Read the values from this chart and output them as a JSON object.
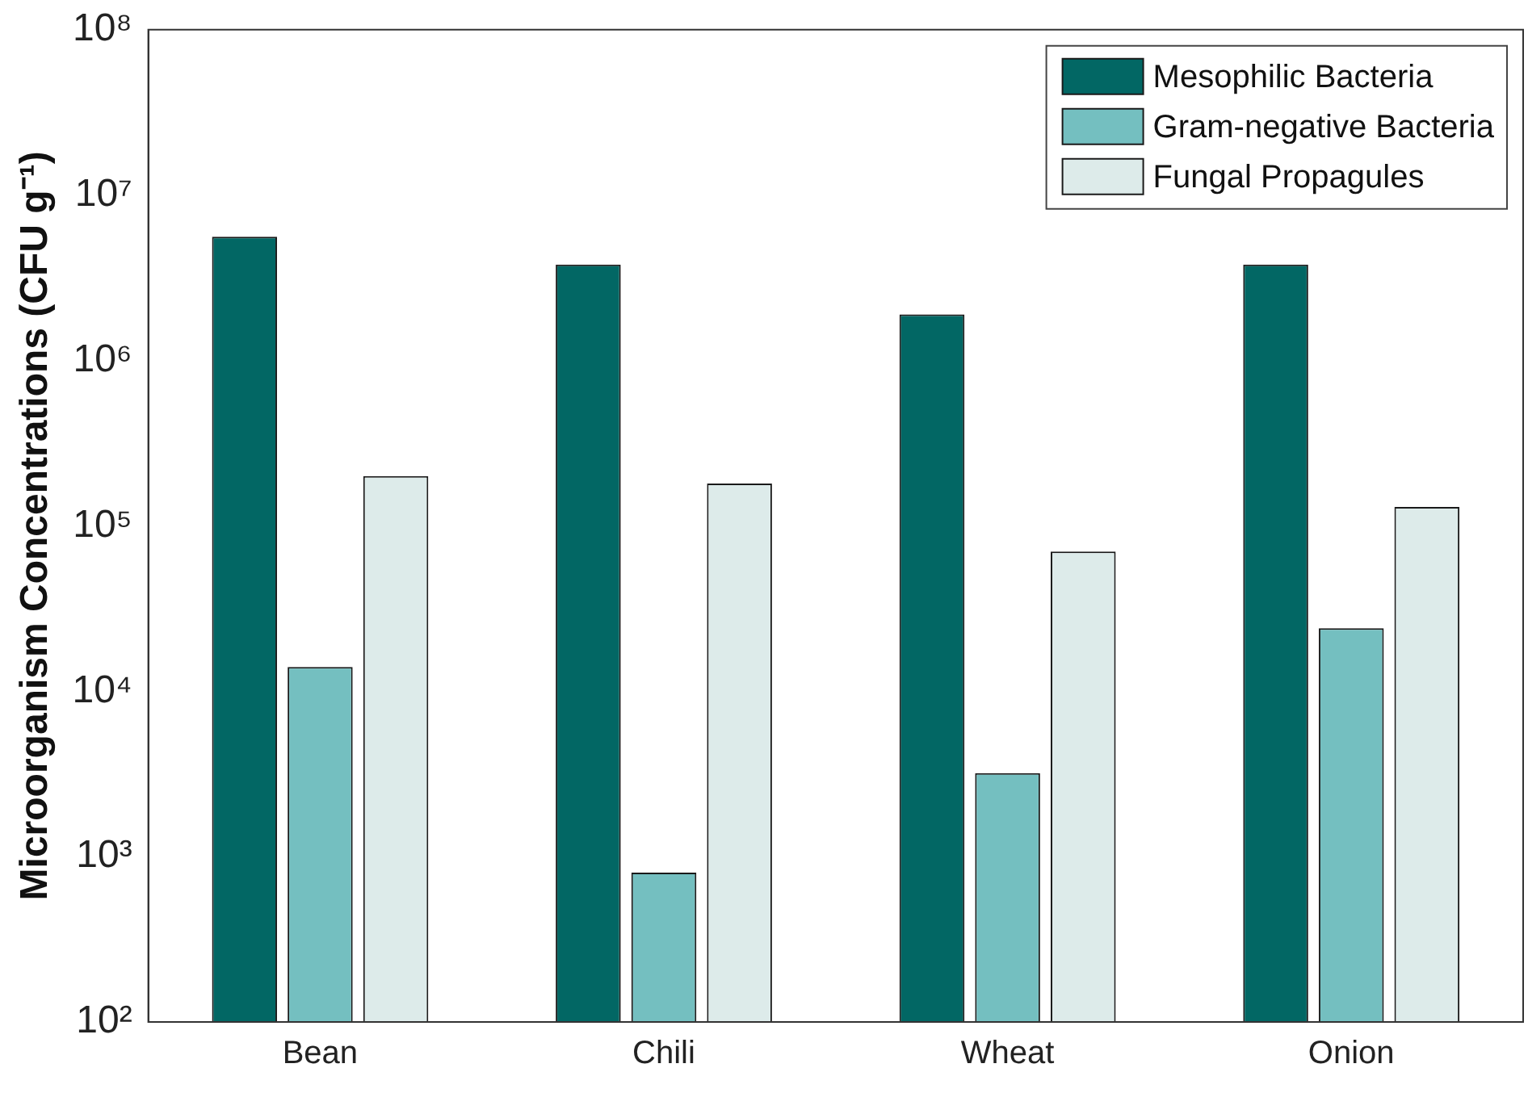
{
  "chart_data": {
    "type": "bar",
    "ylabel": "Microorganism Concentrations (CFU g⁻¹)",
    "categories": [
      "Bean",
      "Chili",
      "Wheat",
      "Onion"
    ],
    "series": [
      {
        "name": "Mesophilic Bacteria",
        "color": "#026764",
        "values": [
          5600000,
          3800000,
          1900000,
          3800000
        ]
      },
      {
        "name": "Gram-negative Bacteria",
        "color": "#74bfc0",
        "values": [
          14000,
          800,
          3200,
          24000
        ]
      },
      {
        "name": "Fungal Propagules",
        "color": "#ddebea",
        "values": [
          200000,
          180000,
          70000,
          130000
        ]
      }
    ],
    "log": "y",
    "ylim": [
      100,
      100000000
    ],
    "yticks": [
      {
        "value": 100,
        "label": "10²"
      },
      {
        "value": 1000,
        "label": "10³"
      },
      {
        "value": 10000,
        "label": "10⁴"
      },
      {
        "value": 100000,
        "label": "10⁵"
      },
      {
        "value": 1000000,
        "label": "10⁶"
      },
      {
        "value": 10000000,
        "label": "10⁷"
      },
      {
        "value": 100000000,
        "label": "10⁸"
      }
    ],
    "grid": false,
    "legend": "top right"
  }
}
